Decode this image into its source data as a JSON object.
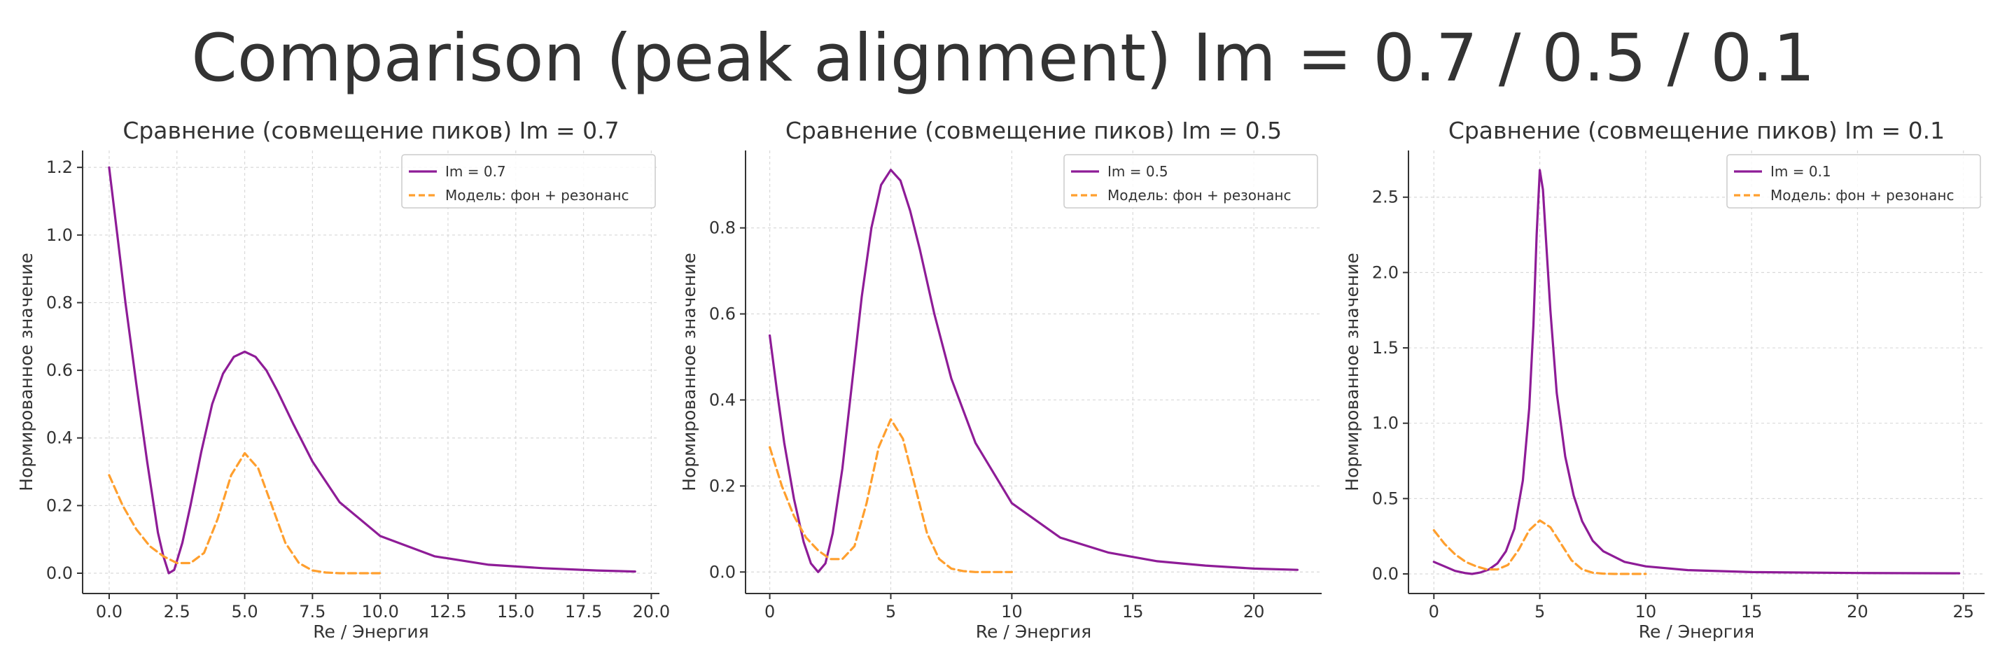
{
  "figure_title": "Comparison (peak alignment) Im = 0.7 / 0.5 / 0.1",
  "colors": {
    "measured": "#8e1c97",
    "model": "#ff9f2e",
    "grid": "#d9d9d9",
    "axis": "#333333"
  },
  "chart_data": [
    {
      "type": "line",
      "title": "Сравнение (совмещение пиков) Im = 0.7",
      "xlabel": "Re / Энергия",
      "ylabel": "Нормированное значение",
      "xlim": [
        -0.98,
        20.3
      ],
      "ylim": [
        -0.06,
        1.25
      ],
      "xticks": [
        0.0,
        2.5,
        5.0,
        7.5,
        10.0,
        12.5,
        15.0,
        17.5,
        20.0
      ],
      "xtick_labels": [
        "0.0",
        "2.5",
        "5.0",
        "7.5",
        "10.0",
        "12.5",
        "15.0",
        "17.5",
        "20.0"
      ],
      "yticks": [
        0.0,
        0.2,
        0.4,
        0.6,
        0.8,
        1.0,
        1.2
      ],
      "ytick_labels": [
        "0.0",
        "0.2",
        "0.4",
        "0.6",
        "0.8",
        "1.0",
        "1.2"
      ],
      "grid": true,
      "legend_position": "top-right",
      "series": [
        {
          "name": "Im = 0.7",
          "style": "solid",
          "color": "#8e1c97",
          "x": [
            0,
            0.3,
            0.6,
            1.0,
            1.4,
            1.8,
            2.0,
            2.2,
            2.4,
            2.7,
            3.0,
            3.4,
            3.8,
            4.2,
            4.6,
            5.0,
            5.4,
            5.8,
            6.2,
            6.8,
            7.5,
            8.5,
            10.0,
            12.0,
            14.0,
            16.0,
            18.0,
            19.4
          ],
          "y": [
            1.2,
            1.0,
            0.8,
            0.56,
            0.33,
            0.12,
            0.05,
            0.0,
            0.01,
            0.09,
            0.2,
            0.36,
            0.5,
            0.59,
            0.64,
            0.655,
            0.64,
            0.6,
            0.54,
            0.44,
            0.33,
            0.21,
            0.11,
            0.05,
            0.025,
            0.015,
            0.008,
            0.005
          ]
        },
        {
          "name": "Модель: фон + резонанс",
          "style": "dashed",
          "color": "#ff9f2e",
          "x": [
            0,
            0.5,
            1.0,
            1.5,
            2.0,
            2.5,
            3.0,
            3.5,
            4.0,
            4.5,
            5.0,
            5.5,
            6.0,
            6.5,
            7.0,
            7.5,
            8.0,
            8.5,
            9.0,
            10.0
          ],
          "y": [
            0.29,
            0.2,
            0.13,
            0.08,
            0.05,
            0.03,
            0.03,
            0.06,
            0.16,
            0.29,
            0.355,
            0.31,
            0.2,
            0.09,
            0.03,
            0.008,
            0.002,
            0.0,
            0.0,
            0.0
          ]
        }
      ]
    },
    {
      "type": "line",
      "title": "Сравнение (совмещение пиков) Im = 0.5",
      "xlabel": "Re / Энергия",
      "ylabel": "Нормированное значение",
      "xlim": [
        -1.0,
        22.8
      ],
      "ylim": [
        -0.05,
        0.98
      ],
      "xticks": [
        0,
        5,
        10,
        15,
        20
      ],
      "xtick_labels": [
        "0",
        "5",
        "10",
        "15",
        "20"
      ],
      "yticks": [
        0.0,
        0.2,
        0.4,
        0.6,
        0.8
      ],
      "ytick_labels": [
        "0.0",
        "0.2",
        "0.4",
        "0.6",
        "0.8"
      ],
      "grid": true,
      "legend_position": "top-right",
      "series": [
        {
          "name": "Im = 0.5",
          "style": "solid",
          "color": "#8e1c97",
          "x": [
            0,
            0.3,
            0.6,
            1.0,
            1.4,
            1.7,
            2.0,
            2.3,
            2.6,
            3.0,
            3.4,
            3.8,
            4.2,
            4.6,
            5.0,
            5.4,
            5.8,
            6.2,
            6.8,
            7.5,
            8.5,
            10.0,
            12.0,
            14.0,
            16.0,
            18.0,
            20.0,
            21.8
          ],
          "y": [
            0.55,
            0.42,
            0.3,
            0.17,
            0.07,
            0.02,
            0.0,
            0.02,
            0.09,
            0.24,
            0.44,
            0.64,
            0.8,
            0.9,
            0.935,
            0.91,
            0.84,
            0.75,
            0.6,
            0.45,
            0.3,
            0.16,
            0.08,
            0.045,
            0.025,
            0.015,
            0.008,
            0.005
          ]
        },
        {
          "name": "Модель: фон + резонанс",
          "style": "dashed",
          "color": "#ff9f2e",
          "x": [
            0,
            0.5,
            1.0,
            1.5,
            2.0,
            2.5,
            3.0,
            3.5,
            4.0,
            4.5,
            5.0,
            5.5,
            6.0,
            6.5,
            7.0,
            7.5,
            8.0,
            8.5,
            9.0,
            10.0
          ],
          "y": [
            0.29,
            0.2,
            0.13,
            0.08,
            0.05,
            0.03,
            0.03,
            0.06,
            0.16,
            0.29,
            0.355,
            0.31,
            0.2,
            0.09,
            0.03,
            0.008,
            0.002,
            0.0,
            0.0,
            0.0
          ]
        }
      ]
    },
    {
      "type": "line",
      "title": "Сравнение (совмещение пиков) Im = 0.1",
      "xlabel": "Re / Энергия",
      "ylabel": "Нормированное значение",
      "xlim": [
        -1.2,
        26.0
      ],
      "ylim": [
        -0.13,
        2.81
      ],
      "xticks": [
        0,
        5,
        10,
        15,
        20,
        25
      ],
      "xtick_labels": [
        "0",
        "5",
        "10",
        "15",
        "20",
        "25"
      ],
      "yticks": [
        0.0,
        0.5,
        1.0,
        1.5,
        2.0,
        2.5
      ],
      "ytick_labels": [
        "0.0",
        "0.5",
        "1.0",
        "1.5",
        "2.0",
        "2.5"
      ],
      "grid": true,
      "legend_position": "top-right",
      "series": [
        {
          "name": "Im = 0.1",
          "style": "solid",
          "color": "#8e1c97",
          "x": [
            0,
            0.5,
            1.0,
            1.5,
            1.8,
            2.2,
            2.6,
            3.0,
            3.4,
            3.8,
            4.2,
            4.5,
            4.7,
            4.85,
            5.0,
            5.15,
            5.3,
            5.5,
            5.8,
            6.2,
            6.6,
            7.0,
            7.5,
            8.0,
            9.0,
            10.0,
            12.0,
            15.0,
            20.0,
            24.8
          ],
          "y": [
            0.08,
            0.05,
            0.02,
            0.005,
            0.0,
            0.01,
            0.03,
            0.07,
            0.15,
            0.3,
            0.62,
            1.1,
            1.65,
            2.25,
            2.68,
            2.55,
            2.2,
            1.75,
            1.2,
            0.78,
            0.52,
            0.35,
            0.22,
            0.15,
            0.08,
            0.05,
            0.025,
            0.012,
            0.006,
            0.004
          ]
        },
        {
          "name": "Модель: фон + резонанс",
          "style": "dashed",
          "color": "#ff9f2e",
          "x": [
            0,
            0.5,
            1.0,
            1.5,
            2.0,
            2.5,
            3.0,
            3.5,
            4.0,
            4.5,
            5.0,
            5.5,
            6.0,
            6.5,
            7.0,
            7.5,
            8.0,
            8.5,
            9.0,
            10.0
          ],
          "y": [
            0.29,
            0.2,
            0.13,
            0.08,
            0.05,
            0.03,
            0.03,
            0.06,
            0.16,
            0.29,
            0.355,
            0.31,
            0.2,
            0.09,
            0.03,
            0.008,
            0.002,
            0.0,
            0.0,
            0.0
          ]
        }
      ]
    }
  ]
}
